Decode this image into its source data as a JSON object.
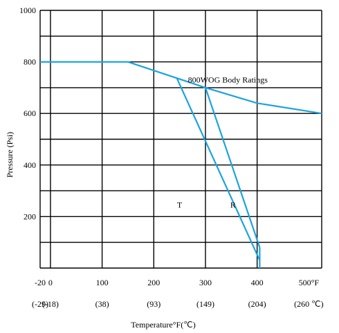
{
  "chart_data": {
    "type": "line",
    "title": "",
    "xlabel": "Temperature°F(℃)",
    "ylabel": "Pressure (Psi)",
    "xlim": [
      -20,
      525
    ],
    "ylim": [
      0,
      1000
    ],
    "grid": true,
    "y_ticks": [
      {
        "v": 200,
        "label": "200"
      },
      {
        "v": 400,
        "label": "400"
      },
      {
        "v": 600,
        "label": "600"
      },
      {
        "v": 800,
        "label": "800"
      },
      {
        "v": 1000,
        "label": "1000"
      }
    ],
    "x_ticks_f": [
      {
        "v": -20,
        "label": "-20"
      },
      {
        "v": 0,
        "label": "0"
      },
      {
        "v": 100,
        "label": "100"
      },
      {
        "v": 200,
        "label": "200"
      },
      {
        "v": 300,
        "label": "300"
      },
      {
        "v": 400,
        "label": "400"
      },
      {
        "v": 500,
        "label": "500°F"
      }
    ],
    "x_ticks_c": [
      {
        "v": -20,
        "label": "(-29)"
      },
      {
        "v": 0,
        "label": "(-18)"
      },
      {
        "v": 100,
        "label": "(38)"
      },
      {
        "v": 200,
        "label": "(93)"
      },
      {
        "v": 300,
        "label": "(149)"
      },
      {
        "v": 400,
        "label": "(204)"
      },
      {
        "v": 500,
        "label": "(260 ℃)"
      }
    ],
    "series": [
      {
        "name": "800WOG Body Ratings",
        "x": [
          -20,
          150,
          300,
          400,
          525
        ],
        "y": [
          800,
          800,
          700,
          640,
          600
        ]
      },
      {
        "name": "T",
        "x": [
          245,
          405
        ],
        "y": [
          735,
          30
        ]
      },
      {
        "name": "R",
        "x": [
          300,
          405
        ],
        "y": [
          700,
          80
        ]
      },
      {
        "name": "",
        "x": [
          405,
          405
        ],
        "y": [
          0,
          80
        ]
      }
    ],
    "annotations": [
      {
        "text": "800WOG Body Ratings",
        "x": 266,
        "y": 730
      },
      {
        "text": "T",
        "x": 245,
        "y": 245
      },
      {
        "text": "R",
        "x": 348,
        "y": 245
      }
    ],
    "line_color": "#1aa3e0"
  }
}
